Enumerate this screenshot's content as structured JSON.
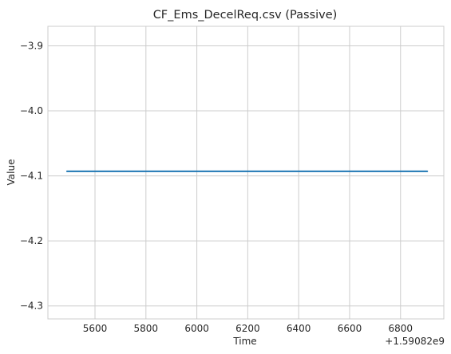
{
  "chart_data": {
    "type": "line",
    "title": "CF_Ems_DecelReq.csv (Passive)",
    "xlabel": "Time",
    "ylabel": "Value",
    "x_offset_label": "+1.59082e9",
    "xlim": [
      5415,
      6970
    ],
    "ylim": [
      -4.32,
      -3.87
    ],
    "x_ticks": [
      5600,
      5800,
      6000,
      6200,
      6400,
      6600,
      6800
    ],
    "x_tick_labels": [
      "5600",
      "5800",
      "6000",
      "6200",
      "6400",
      "6600",
      "6800"
    ],
    "y_ticks": [
      -3.9,
      -4.0,
      -4.1,
      -4.2,
      -4.3
    ],
    "y_tick_labels": [
      "−3.9",
      "−4.0",
      "−4.1",
      "−4.2",
      "−4.3"
    ],
    "grid": true,
    "line_color": "#1f77b4",
    "series": [
      {
        "x": [
          5490,
          6905
        ],
        "y": [
          -4.093,
          -4.093
        ]
      }
    ]
  }
}
